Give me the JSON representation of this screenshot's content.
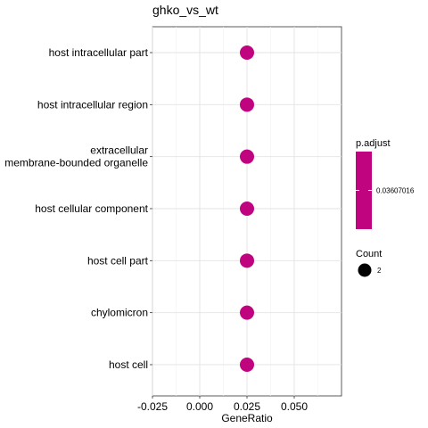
{
  "chart_data": {
    "type": "scatter",
    "title": "ghko_vs_wt",
    "xlabel": "GeneRatio",
    "ylabel": "",
    "categories": [
      "host intracellular part",
      "host intracellular region",
      "extracellular\nmembrane-bounded organelle",
      "host cellular component",
      "host cell part",
      "chylomicron",
      "host cell"
    ],
    "series": [
      {
        "points": [
          {
            "category": "host intracellular part",
            "x": 0.025,
            "count": 2,
            "p_adjust": 0.03607016
          },
          {
            "category": "host intracellular region",
            "x": 0.025,
            "count": 2,
            "p_adjust": 0.03607016
          },
          {
            "category": "extracellular\nmembrane-bounded organelle",
            "x": 0.025,
            "count": 2,
            "p_adjust": 0.03607016
          },
          {
            "category": "host cellular component",
            "x": 0.025,
            "count": 2,
            "p_adjust": 0.03607016
          },
          {
            "category": "host cell part",
            "x": 0.025,
            "count": 2,
            "p_adjust": 0.03607016
          },
          {
            "category": "chylomicron",
            "x": 0.025,
            "count": 2,
            "p_adjust": 0.03607016
          },
          {
            "category": "host cell",
            "x": 0.025,
            "count": 2,
            "p_adjust": 0.03607016
          }
        ]
      }
    ],
    "xlim": [
      -0.025,
      0.075
    ],
    "x_ticks": [
      -0.025,
      0.0,
      0.025,
      0.05
    ],
    "x_tick_labels": [
      "-0.025",
      "0.000",
      "0.025",
      "0.050"
    ],
    "grid": true,
    "point_color": "#c0037e",
    "legend": {
      "placement": "right",
      "color": {
        "title": "p.adjust",
        "label": "0.03607016",
        "color": "#c0037e"
      },
      "size": {
        "title": "Count",
        "label": "2"
      }
    }
  }
}
